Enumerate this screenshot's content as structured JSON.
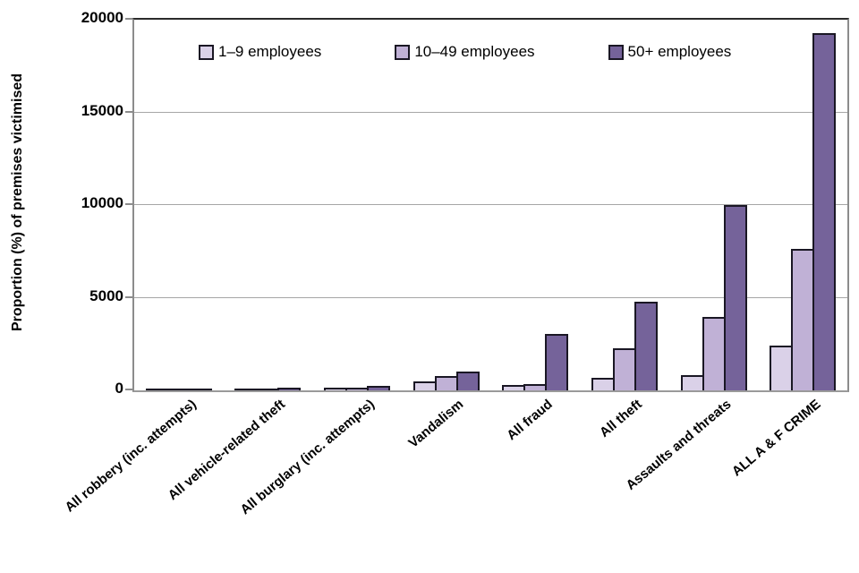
{
  "chart_data": {
    "type": "bar",
    "title": "",
    "xlabel": "",
    "ylabel": "Proportion (%) of premises victimised",
    "ylim": [
      0,
      20000
    ],
    "yticks": [
      0,
      5000,
      10000,
      15000,
      20000
    ],
    "grid": "horizontal-only",
    "legend_position": "top-inside",
    "categories": [
      "All robbery (inc. attempts)",
      "All vehicle-related theft",
      "All burglary (inc. attempts)",
      "Vandalism",
      "All fraud",
      "All theft",
      "Assaults and threats",
      "ALL A & F CRIME"
    ],
    "series": [
      {
        "name": "1–9 employees",
        "color": "#DAD1E8",
        "values": [
          30,
          40,
          160,
          480,
          290,
          700,
          800,
          2400
        ]
      },
      {
        "name": "10–49 employees",
        "color": "#C0B1D6",
        "values": [
          30,
          50,
          160,
          770,
          350,
          2250,
          3950,
          7650
        ]
      },
      {
        "name": "50+ employees",
        "color": "#75639A",
        "values": [
          50,
          160,
          250,
          1000,
          3050,
          4800,
          10000,
          19300
        ]
      }
    ],
    "bar_border_color": "#1A1724",
    "gridline_color": "#A6A6A6",
    "axis_color": "#8C8C8C",
    "text_color": "#000000"
  }
}
